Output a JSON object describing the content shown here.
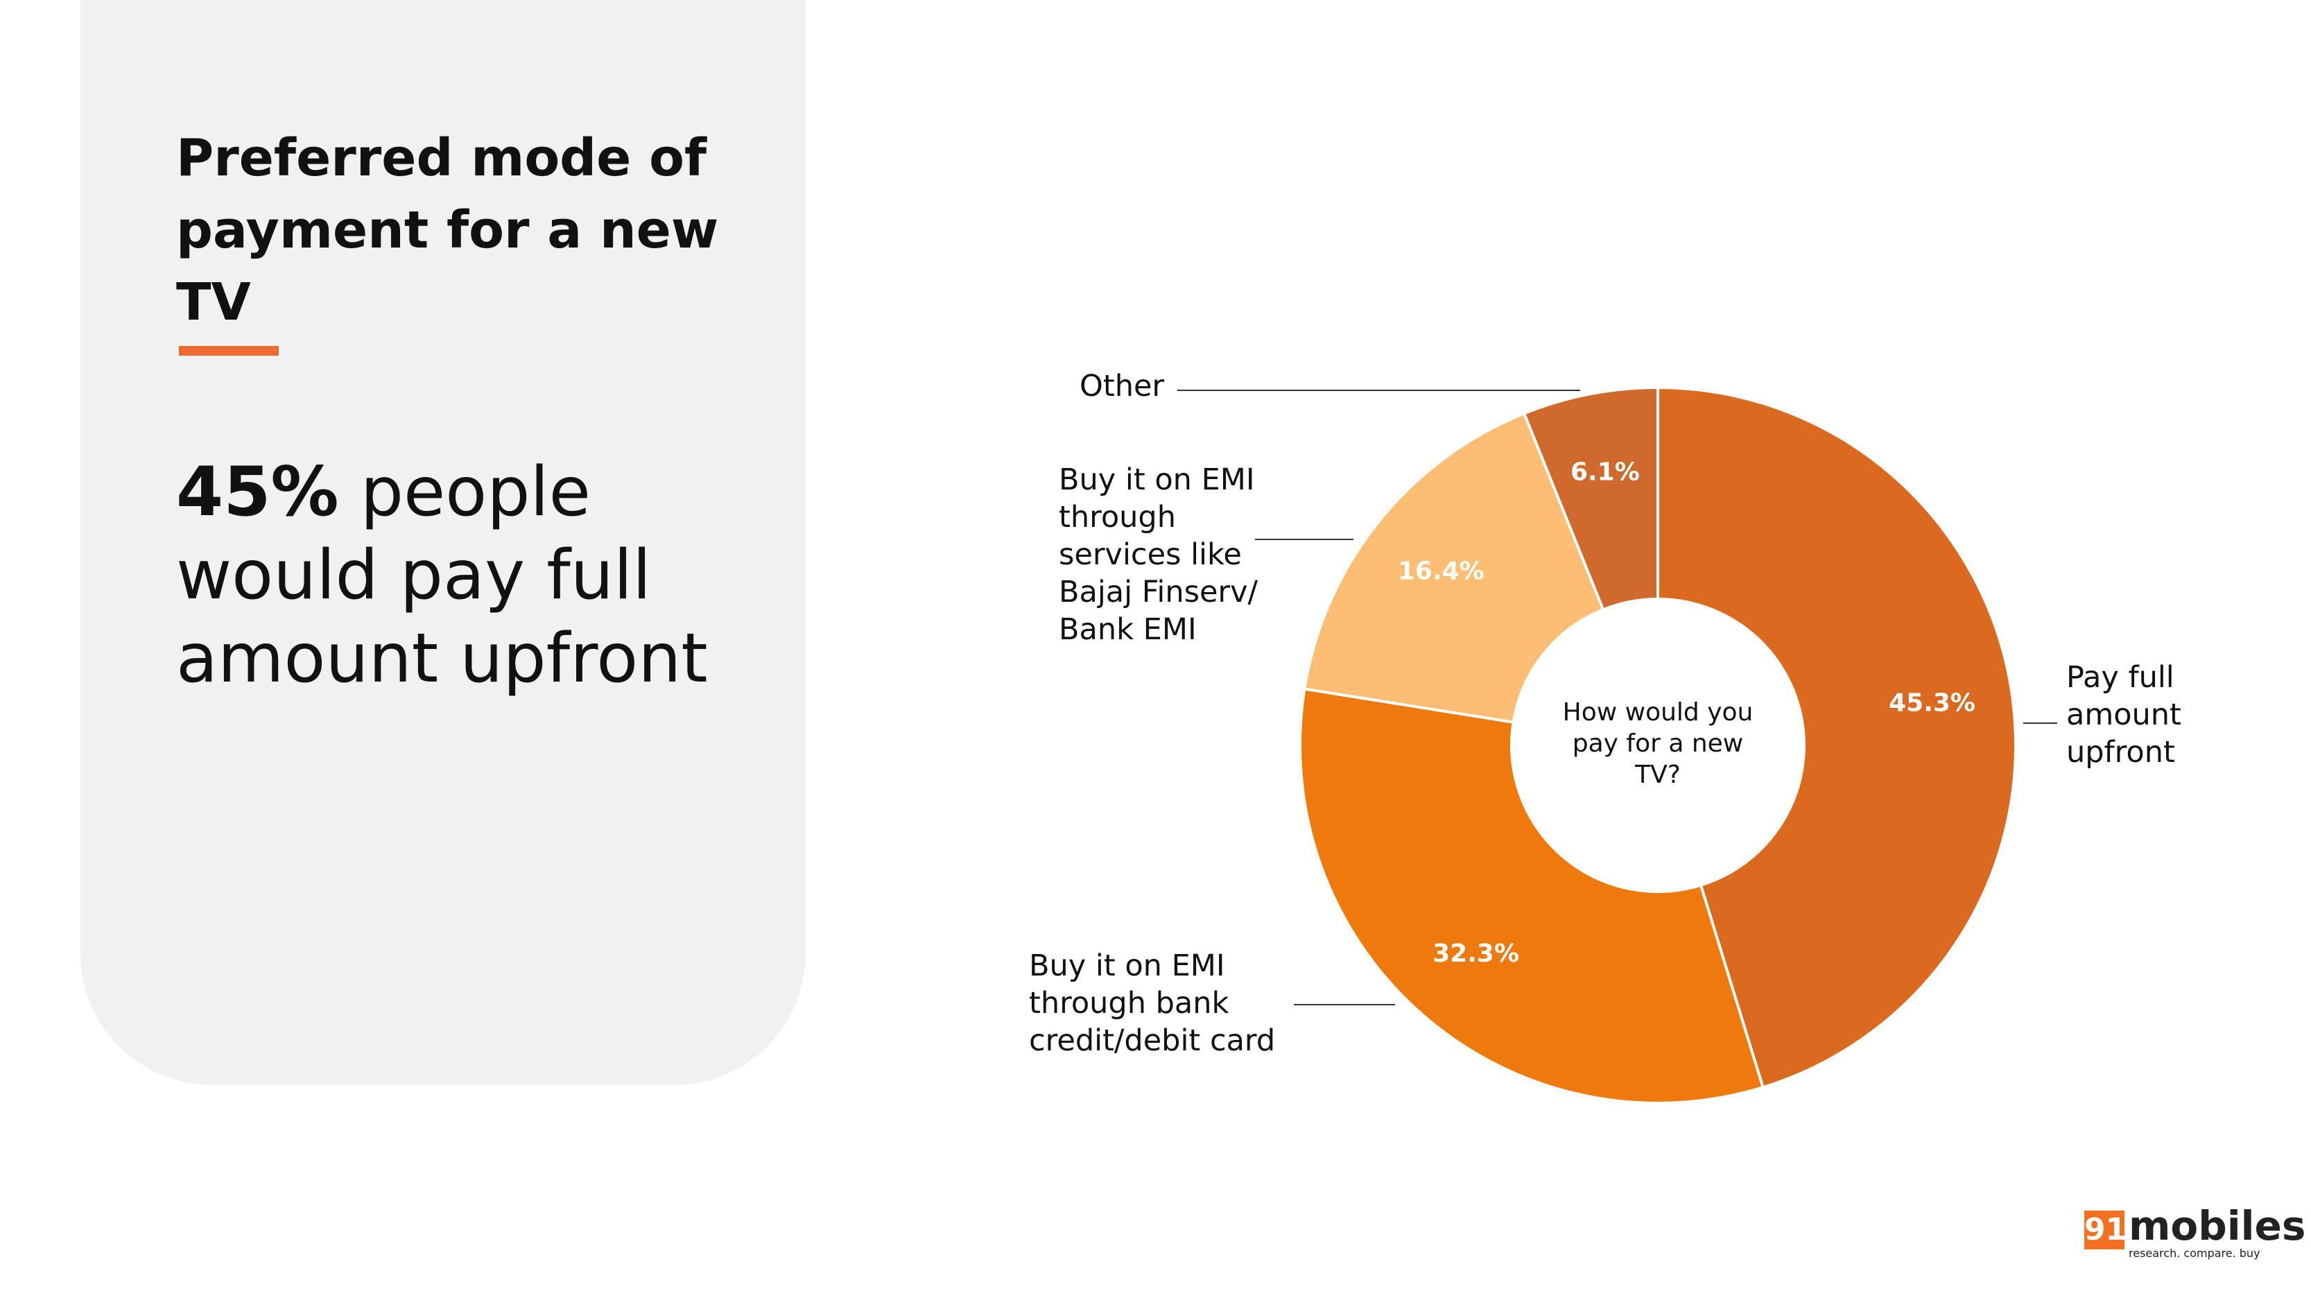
{
  "panel": {
    "title": "Preferred mode of payment for a new TV",
    "highlight": "45%",
    "text": "people would pay full amount upfront"
  },
  "chart_data": {
    "type": "donut",
    "center_label": "How would you pay for a new TV?",
    "categories": [
      "Pay full amount upfront",
      "Buy it on EMI through bank credit/debit card",
      "Buy it on EMI through services like Bajaj Finserv/ Bank EMI",
      "Other"
    ],
    "values": [
      45.3,
      32.3,
      16.4,
      6.1
    ],
    "value_labels": [
      "45.3%",
      "32.3%",
      "16.4%",
      "6.1%"
    ],
    "colors": [
      "#d96a20",
      "#ee7a0e",
      "#fdbd72",
      "#cf6a2c"
    ]
  },
  "logo": {
    "number": "91",
    "name": "mobiles",
    "tagline": "research. compare. buy"
  }
}
